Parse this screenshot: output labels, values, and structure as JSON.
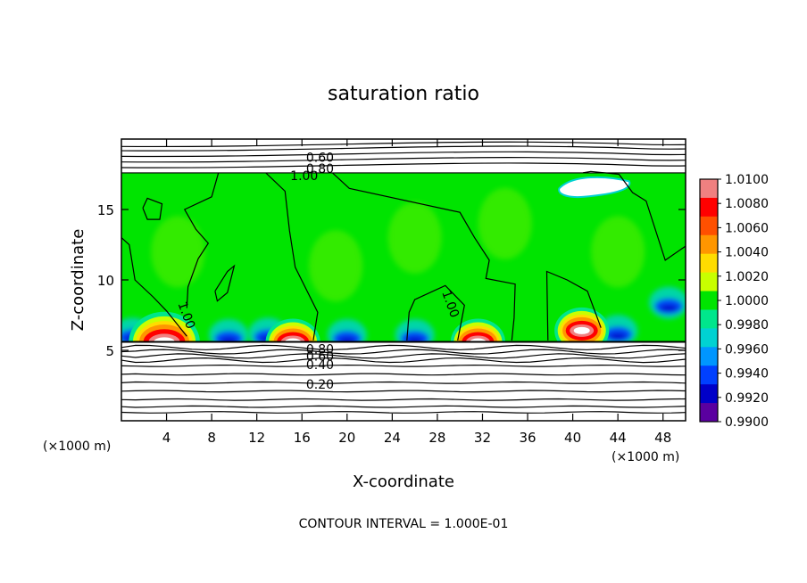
{
  "chart_data": {
    "type": "heatmap",
    "title": "saturation ratio",
    "xlabel": "X-coordinate",
    "ylabel": "Z-coordinate",
    "x_unit_label": "(×1000 m)",
    "y_unit_label": "(×1000 m)",
    "xlim": [
      0,
      50
    ],
    "ylim": [
      0,
      20
    ],
    "x_ticks": [
      4,
      8,
      12,
      16,
      20,
      24,
      28,
      32,
      36,
      40,
      44,
      48
    ],
    "y_ticks": [
      5,
      10,
      15
    ],
    "contour_interval_text": "CONTOUR INTERVAL = 1.000E-01",
    "colorbar": {
      "min": 0.99,
      "max": 1.01,
      "ticks": [
        "1.0100",
        "1.0080",
        "1.0060",
        "1.0040",
        "1.0020",
        "1.0000",
        "0.9980",
        "0.9960",
        "0.9940",
        "0.9920",
        "0.9900"
      ],
      "colors": [
        "#f08080",
        "#ff0000",
        "#ff5000",
        "#ff9600",
        "#ffdc00",
        "#c8ff00",
        "#00e400",
        "#00e68c",
        "#00d2d2",
        "#0096ff",
        "#0040ff",
        "#0000c8",
        "#5a00a0"
      ]
    },
    "contour_labels": [
      {
        "text": "0.60",
        "x": 17.6,
        "z": 18.7
      },
      {
        "text": "0.80",
        "x": 17.6,
        "z": 17.9
      },
      {
        "text": "1.00",
        "x": 16.2,
        "z": 17.4
      },
      {
        "text": "1.00",
        "x": 5.8,
        "z": 7.5
      },
      {
        "text": "1.00",
        "x": 29.2,
        "z": 8.3
      },
      {
        "text": "0.20",
        "x": 17.6,
        "z": 2.6
      },
      {
        "text": "0.40",
        "x": 17.6,
        "z": 4.0
      },
      {
        "text": "0.60",
        "x": 17.6,
        "z": 4.6
      },
      {
        "text": "0.80",
        "x": 17.6,
        "z": 5.1
      }
    ],
    "field_regions": {
      "domain_z": [
        5.6,
        17.6
      ],
      "background_value": 1.0008,
      "hot_spots": [
        {
          "x": 3.8,
          "z": 5.6,
          "value": 1.009
        },
        {
          "x": 15.2,
          "z": 5.6,
          "value": 1.007
        },
        {
          "x": 31.6,
          "z": 5.6,
          "value": 1.007
        },
        {
          "x": 40.8,
          "z": 6.4,
          "value": 1.006
        }
      ],
      "cold_spots": [
        {
          "x": 1.0,
          "z": 5.8,
          "value": 0.993
        },
        {
          "x": 9.5,
          "z": 5.7,
          "value": 0.991
        },
        {
          "x": 13.0,
          "z": 5.8,
          "value": 0.994
        },
        {
          "x": 20.0,
          "z": 5.7,
          "value": 0.993
        },
        {
          "x": 26.0,
          "z": 5.7,
          "value": 0.993
        },
        {
          "x": 44.0,
          "z": 6.0,
          "value": 0.992
        },
        {
          "x": 48.5,
          "z": 8.0,
          "value": 0.993
        }
      ]
    },
    "iso_lines_below": [
      0.6,
      1.0,
      1.5,
      2.1,
      2.7,
      3.3,
      3.9,
      4.3,
      4.6,
      4.9,
      5.2
    ],
    "iso_lines_above": [
      18.1,
      18.5,
      18.9,
      19.3,
      19.6
    ]
  }
}
